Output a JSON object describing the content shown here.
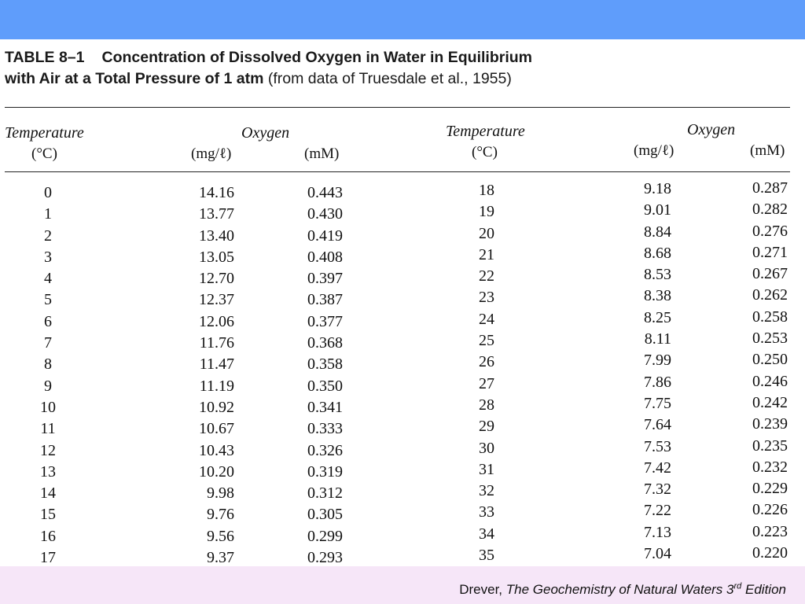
{
  "slide": {
    "table_number": "TABLE 8–1",
    "title_line1": "Concentration of Dissolved Oxygen in Water in Equilibrium",
    "title_line2_bold": "with Air at a Total Pressure of 1 atm",
    "title_line2_rest": "(from data of Truesdale et al., 1955)"
  },
  "headers": {
    "temperature": "Temperature",
    "temp_unit": "(°C)",
    "oxygen": "Oxygen",
    "mgl_unit": "(mg/ℓ)",
    "mm_unit": "(mM)"
  },
  "left_table": {
    "temperature": [
      "0",
      "1",
      "2",
      "3",
      "4",
      "5",
      "6",
      "7",
      "8",
      "9",
      "10",
      "11",
      "12",
      "13",
      "14",
      "15",
      "16",
      "17"
    ],
    "mg_per_l": [
      "14.16",
      "13.77",
      "13.40",
      "13.05",
      "12.70",
      "12.37",
      "12.06",
      "11.76",
      "11.47",
      "11.19",
      "10.92",
      "10.67",
      "10.43",
      "10.20",
      "9.98",
      "9.76",
      "9.56",
      "9.37"
    ],
    "mM": [
      "0.443",
      "0.430",
      "0.419",
      "0.408",
      "0.397",
      "0.387",
      "0.377",
      "0.368",
      "0.358",
      "0.350",
      "0.341",
      "0.333",
      "0.326",
      "0.319",
      "0.312",
      "0.305",
      "0.299",
      "0.293"
    ]
  },
  "right_table": {
    "temperature": [
      "18",
      "19",
      "20",
      "21",
      "22",
      "23",
      "24",
      "25",
      "26",
      "27",
      "28",
      "29",
      "30",
      "31",
      "32",
      "33",
      "34",
      "35"
    ],
    "mg_per_l": [
      "9.18",
      "9.01",
      "8.84",
      "8.68",
      "8.53",
      "8.38",
      "8.25",
      "8.11",
      "7.99",
      "7.86",
      "7.75",
      "7.64",
      "7.53",
      "7.42",
      "7.32",
      "7.22",
      "7.13",
      "7.04"
    ],
    "mM": [
      "0.287",
      "0.282",
      "0.276",
      "0.271",
      "0.267",
      "0.262",
      "0.258",
      "0.253",
      "0.250",
      "0.246",
      "0.242",
      "0.239",
      "0.235",
      "0.232",
      "0.229",
      "0.226",
      "0.223",
      "0.220"
    ]
  },
  "footer": {
    "author": "Drever,",
    "book_title": "The Geochemistry of Natural Waters 3",
    "edition_sup": "rd",
    "edition_word": "Edition"
  },
  "colors": {
    "header_bar": "#5f9dfb",
    "footer_bar": "#f6e6f8"
  }
}
